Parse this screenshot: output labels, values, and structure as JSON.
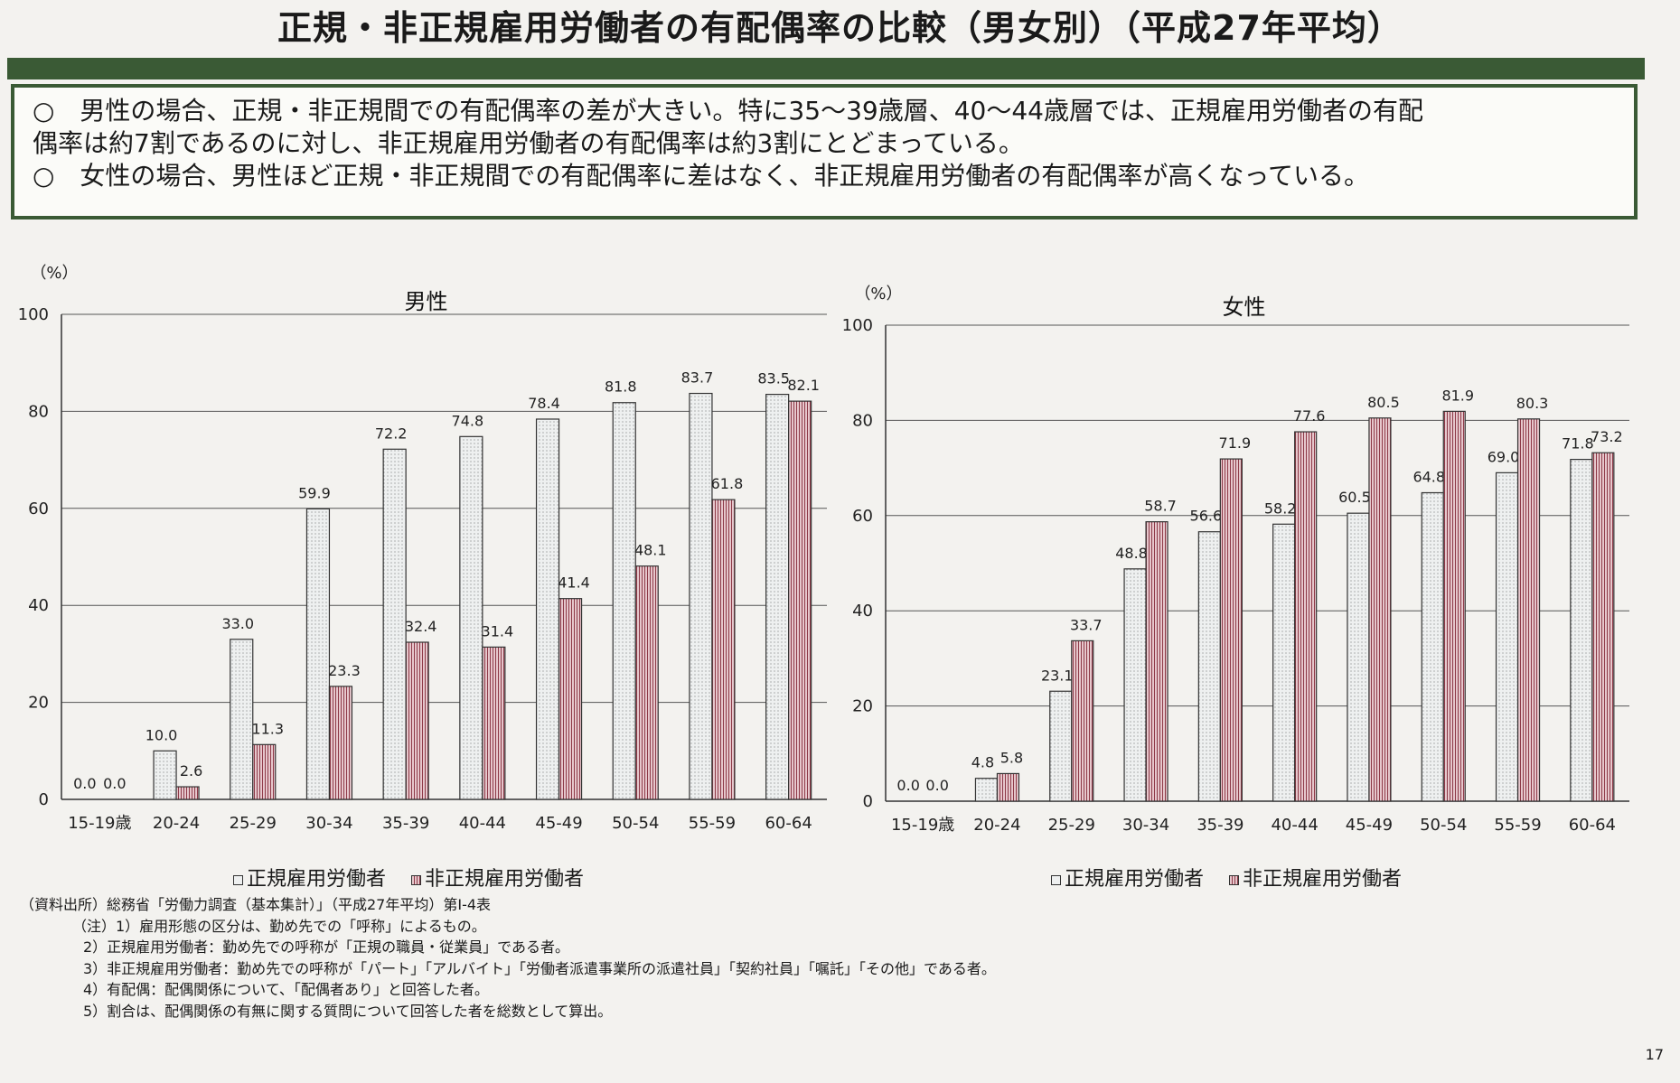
{
  "title": "正規・非正規雇用労働者の有配偶率の比較（男女別）（平成27年平均）",
  "summary": [
    "○　男性の場合、正規・非正規間での有配偶率の差が大きい。特に35～39歳層、40～44歳層では、正規雇用労働者の有配",
    "偶率は約7割であるのに対し、非正規雇用労働者の有配偶率は約3割にとどまっている。",
    "○　女性の場合、男性ほど正規・非正規間での有配偶率に差はなく、非正規雇用労働者の有配偶率が高くなっている。"
  ],
  "legend": {
    "regular": "正規雇用労働者",
    "nonregular": "非正規雇用労働者"
  },
  "colors": {
    "regular_fill": "#eef0f0",
    "nonregular_fill": "#e6c7cc",
    "nonregular_stripe": "#8e3a48",
    "header_green": "#3a5a35"
  },
  "chart_data": [
    {
      "type": "bar",
      "title": "男性",
      "ylabel": "（%）",
      "ylim": [
        0,
        100
      ],
      "yticks": [
        0,
        20,
        40,
        60,
        80,
        100
      ],
      "grid": true,
      "categories": [
        "15-19歳",
        "20-24",
        "25-29",
        "30-34",
        "35-39",
        "40-44",
        "45-49",
        "50-54",
        "55-59",
        "60-64"
      ],
      "series": [
        {
          "name": "正規雇用労働者",
          "values": [
            0.0,
            10.0,
            33.0,
            59.9,
            72.2,
            74.8,
            78.4,
            81.8,
            83.7,
            83.5
          ]
        },
        {
          "name": "非正規雇用労働者",
          "values": [
            0.0,
            2.6,
            11.3,
            23.3,
            32.4,
            31.4,
            41.4,
            48.1,
            61.8,
            82.1
          ]
        }
      ]
    },
    {
      "type": "bar",
      "title": "女性",
      "ylabel": "（%）",
      "ylim": [
        0,
        100
      ],
      "yticks": [
        0,
        20,
        40,
        60,
        80,
        100
      ],
      "grid": true,
      "categories": [
        "15-19歳",
        "20-24",
        "25-29",
        "30-34",
        "35-39",
        "40-44",
        "45-49",
        "50-54",
        "55-59",
        "60-64"
      ],
      "series": [
        {
          "name": "正規雇用労働者",
          "values": [
            0.0,
            4.8,
            23.1,
            48.8,
            56.6,
            58.2,
            60.5,
            64.8,
            69.0,
            71.8
          ]
        },
        {
          "name": "非正規雇用労働者",
          "values": [
            0.0,
            5.8,
            33.7,
            58.7,
            71.9,
            77.6,
            80.5,
            81.9,
            80.3,
            73.2
          ]
        }
      ]
    }
  ],
  "notes": [
    "（資料出所）総務省「労働力調査（基本集計）」（平成27年平均）第Ⅰ-4表",
    "（注）1）雇用形態の区分は、勤め先での「呼称」によるもの。",
    "2）正規雇用労働者：勤め先での呼称が「正規の職員・従業員」である者。",
    "3）非正規雇用労働者：勤め先での呼称が「パート」「アルバイト」「労働者派遣事業所の派遣社員」「契約社員」「嘱託」「その他」である者。",
    "4）有配偶：配偶関係について、「配偶者あり」と回答した者。",
    "5）割合は、配偶関係の有無に関する質問について回答した者を総数として算出。"
  ],
  "page_number": "17"
}
